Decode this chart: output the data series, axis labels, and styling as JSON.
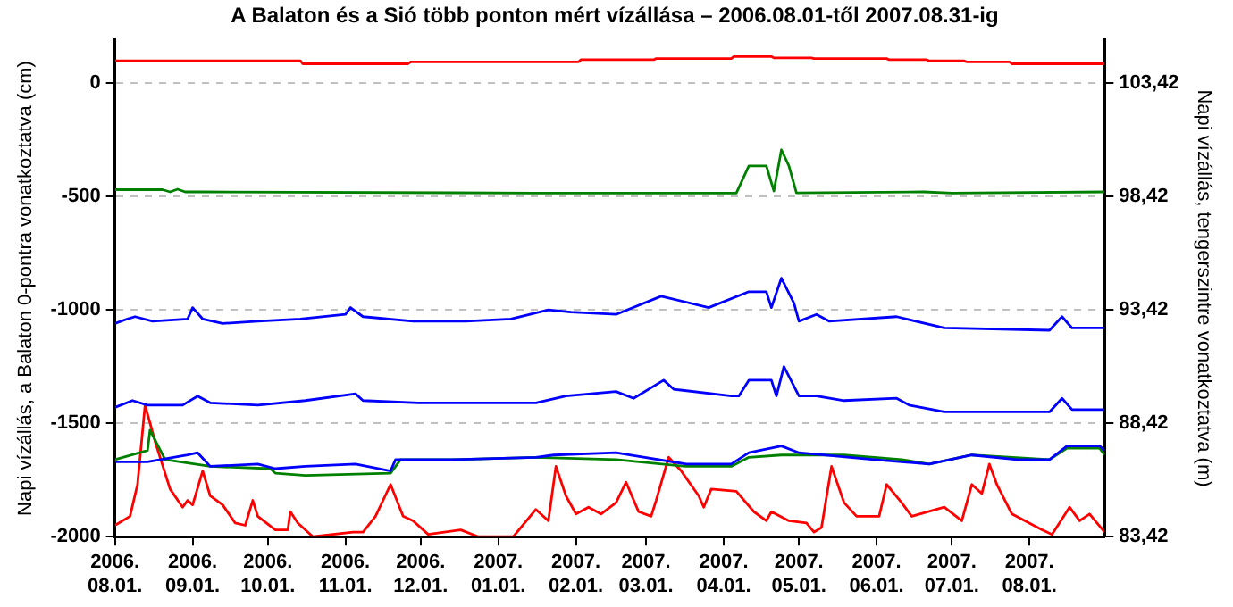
{
  "chart_data": {
    "type": "line",
    "title": "A Balaton és a Sió több ponton mért vízállása – 2006.08.01-től 2007.08.31-ig",
    "ylabel": "Napi vízállás, a Balaton 0-pontra vonatkoztatva (cm)",
    "y2label": "Napi vízállás, tengerszintre vonatkoztatva (m)",
    "xlim": [
      "2006-08-01",
      "2007-08-31"
    ],
    "xticks": [
      {
        "value": "2006-08-01",
        "label": "2006. 08.01."
      },
      {
        "value": "2006-09-01",
        "label": "2006. 09.01."
      },
      {
        "value": "2006-10-01",
        "label": "2006. 10.01."
      },
      {
        "value": "2006-11-01",
        "label": "2006. 11.01."
      },
      {
        "value": "2006-12-01",
        "label": "2006. 12.01."
      },
      {
        "value": "2007-01-01",
        "label": "2007. 01.01."
      },
      {
        "value": "2007-02-01",
        "label": "2007. 02.01."
      },
      {
        "value": "2007-03-01",
        "label": "2007. 03.01."
      },
      {
        "value": "2007-04-01",
        "label": "2007. 04.01."
      },
      {
        "value": "2007-05-01",
        "label": "2007. 05.01."
      },
      {
        "value": "2007-06-01",
        "label": "2007. 06.01."
      },
      {
        "value": "2007-07-01",
        "label": "2007. 07.01."
      },
      {
        "value": "2007-08-01",
        "label": "2007. 08.01."
      }
    ],
    "ylim": [
      -2000,
      190
    ],
    "yticks": [
      0,
      -500,
      -1000,
      -1500,
      -2000
    ],
    "y2lim": [
      83.42,
      105.32
    ],
    "y2ticks": [
      {
        "value": 103.42,
        "label": "103,42"
      },
      {
        "value": 98.42,
        "label": "98,42"
      },
      {
        "value": 93.42,
        "label": "93,42"
      },
      {
        "value": 88.42,
        "label": "88,42"
      },
      {
        "value": 83.42,
        "label": "83,42"
      }
    ],
    "grid": "y",
    "series": [
      {
        "color": "#ff0000",
        "x": [
          "2006-08-01",
          "2006-10-14",
          "2006-10-15",
          "2006-11-26",
          "2006-11-27",
          "2007-02-02",
          "2007-02-03",
          "2007-03-04",
          "2007-03-05",
          "2007-04-04",
          "2007-04-05",
          "2007-04-20",
          "2007-04-21",
          "2007-05-06",
          "2007-05-07",
          "2007-06-05",
          "2007-06-06",
          "2007-06-21",
          "2007-06-22",
          "2007-07-06",
          "2007-07-07",
          "2007-07-24",
          "2007-07-25",
          "2007-08-31"
        ],
        "values": [
          98,
          98,
          85,
          85,
          93,
          93,
          103,
          103,
          108,
          108,
          117,
          117,
          111,
          111,
          108,
          108,
          103,
          103,
          98,
          98,
          93,
          93,
          85,
          85
        ]
      },
      {
        "color": "#008000",
        "x": [
          "2006-08-01",
          "2006-08-20",
          "2006-08-23",
          "2006-08-26",
          "2006-08-29",
          "2006-09-05",
          "2007-01-15",
          "2007-04-06",
          "2007-04-11",
          "2007-04-18",
          "2007-04-21",
          "2007-04-24",
          "2007-04-27",
          "2007-04-30",
          "2007-06-20",
          "2007-07-01",
          "2007-08-31"
        ],
        "values": [
          -470,
          -470,
          -480,
          -468,
          -480,
          -480,
          -485,
          -485,
          -365,
          -365,
          -476,
          -294,
          -365,
          -484,
          -480,
          -485,
          -480
        ]
      },
      {
        "color": "#0000ff",
        "x": [
          "2006-08-01",
          "2006-08-06",
          "2006-08-09",
          "2006-08-16",
          "2006-08-30",
          "2006-09-01",
          "2006-09-05",
          "2006-09-13",
          "2006-09-27",
          "2006-10-14",
          "2006-11-01",
          "2006-11-03",
          "2006-11-08",
          "2006-11-28",
          "2006-12-19",
          "2007-01-06",
          "2007-01-21",
          "2007-01-30",
          "2007-02-17",
          "2007-03-07",
          "2007-03-26",
          "2007-04-11",
          "2007-04-18",
          "2007-04-20",
          "2007-04-24",
          "2007-04-29",
          "2007-05-01",
          "2007-05-08",
          "2007-05-13",
          "2007-06-09",
          "2007-06-28",
          "2007-08-09",
          "2007-08-14",
          "2007-08-18",
          "2007-08-31"
        ],
        "values": [
          -1060,
          -1040,
          -1030,
          -1050,
          -1040,
          -990,
          -1040,
          -1060,
          -1050,
          -1040,
          -1020,
          -990,
          -1030,
          -1050,
          -1050,
          -1040,
          -1000,
          -1010,
          -1020,
          -940,
          -990,
          -920,
          -920,
          -990,
          -860,
          -970,
          -1050,
          -1020,
          -1050,
          -1030,
          -1080,
          -1090,
          -1030,
          -1080,
          -1080
        ]
      },
      {
        "color": "#0000ff",
        "x": [
          "2006-08-01",
          "2006-08-08",
          "2006-08-14",
          "2006-08-28",
          "2006-09-03",
          "2006-09-08",
          "2006-09-27",
          "2006-10-16",
          "2006-11-05",
          "2006-11-08",
          "2006-11-30",
          "2006-12-24",
          "2007-01-16",
          "2007-01-28",
          "2007-02-17",
          "2007-02-24",
          "2007-03-08",
          "2007-03-12",
          "2007-04-04",
          "2007-04-07",
          "2007-04-11",
          "2007-04-20",
          "2007-04-22",
          "2007-04-25",
          "2007-05-01",
          "2007-05-08",
          "2007-05-19",
          "2007-06-09",
          "2007-06-14",
          "2007-06-28",
          "2007-08-09",
          "2007-08-14",
          "2007-08-18",
          "2007-08-31"
        ],
        "values": [
          -1430,
          -1400,
          -1420,
          -1420,
          -1380,
          -1410,
          -1420,
          -1400,
          -1370,
          -1400,
          -1410,
          -1410,
          -1410,
          -1380,
          -1360,
          -1390,
          -1310,
          -1350,
          -1380,
          -1380,
          -1310,
          -1310,
          -1380,
          -1250,
          -1380,
          -1380,
          -1400,
          -1390,
          -1420,
          -1450,
          -1450,
          -1390,
          -1440,
          -1440
        ]
      },
      {
        "color": "#0000ff",
        "x": [
          "2006-08-01",
          "2006-08-14",
          "2006-08-30",
          "2006-09-03",
          "2006-09-08",
          "2006-09-27",
          "2006-10-04",
          "2006-10-16",
          "2006-11-05",
          "2006-11-19",
          "2006-11-21",
          "2006-12-14",
          "2007-01-16",
          "2007-01-23",
          "2007-02-17",
          "2007-03-17",
          "2007-04-04",
          "2007-04-11",
          "2007-04-24",
          "2007-05-01",
          "2007-05-31",
          "2007-06-22",
          "2007-07-09",
          "2007-07-27",
          "2007-08-09",
          "2007-08-16",
          "2007-08-29",
          "2007-08-31"
        ],
        "values": [
          -1670,
          -1670,
          -1640,
          -1630,
          -1690,
          -1680,
          -1700,
          -1690,
          -1680,
          -1710,
          -1660,
          -1660,
          -1650,
          -1640,
          -1630,
          -1680,
          -1680,
          -1630,
          -1600,
          -1630,
          -1660,
          -1680,
          -1640,
          -1660,
          -1660,
          -1600,
          -1600,
          -1620
        ]
      },
      {
        "color": "#008000",
        "x": [
          "2006-08-01",
          "2006-08-14",
          "2006-08-15",
          "2006-08-21",
          "2006-09-08",
          "2006-10-02",
          "2006-10-04",
          "2006-10-16",
          "2006-11-19",
          "2006-11-23",
          "2006-12-14",
          "2007-01-16",
          "2007-02-17",
          "2007-03-17",
          "2007-04-04",
          "2007-04-11",
          "2007-04-24",
          "2007-05-19",
          "2007-06-11",
          "2007-06-22",
          "2007-07-09",
          "2007-08-09",
          "2007-08-16",
          "2007-08-29",
          "2007-08-31"
        ],
        "values": [
          -1660,
          -1620,
          -1530,
          -1660,
          -1690,
          -1700,
          -1720,
          -1730,
          -1720,
          -1660,
          -1660,
          -1650,
          -1660,
          -1690,
          -1690,
          -1650,
          -1640,
          -1640,
          -1660,
          -1680,
          -1640,
          -1660,
          -1610,
          -1610,
          -1640
        ]
      },
      {
        "color": "#ff0000",
        "x": [
          "2006-08-01",
          "2006-08-07",
          "2006-08-10",
          "2006-08-13",
          "2006-08-17",
          "2006-08-23",
          "2006-08-28",
          "2006-08-30",
          "2006-09-01",
          "2006-09-05",
          "2006-09-08",
          "2006-09-13",
          "2006-09-18",
          "2006-09-22",
          "2006-09-25",
          "2006-09-27",
          "2006-10-04",
          "2006-10-09",
          "2006-10-10",
          "2006-10-13",
          "2006-10-19",
          "2006-11-04",
          "2006-11-08",
          "2006-11-13",
          "2006-11-19",
          "2006-11-24",
          "2006-11-28",
          "2006-12-04",
          "2006-12-17",
          "2006-12-24",
          "2007-01-07",
          "2007-01-16",
          "2007-01-21",
          "2007-01-24",
          "2007-01-28",
          "2007-02-01",
          "2007-02-06",
          "2007-02-11",
          "2007-02-17",
          "2007-02-21",
          "2007-02-26",
          "2007-03-03",
          "2007-03-05",
          "2007-03-10",
          "2007-03-15",
          "2007-03-22",
          "2007-03-24",
          "2007-03-27",
          "2007-04-06",
          "2007-04-13",
          "2007-04-18",
          "2007-04-20",
          "2007-04-27",
          "2007-05-04",
          "2007-05-07",
          "2007-05-10",
          "2007-05-14",
          "2007-05-19",
          "2007-05-24",
          "2007-06-02",
          "2007-06-05",
          "2007-06-11",
          "2007-06-15",
          "2007-06-28",
          "2007-07-05",
          "2007-07-09",
          "2007-07-13",
          "2007-07-16",
          "2007-07-19",
          "2007-07-25",
          "2007-08-06",
          "2007-08-10",
          "2007-08-17",
          "2007-08-21",
          "2007-08-25",
          "2007-08-31"
        ],
        "values": [
          -1950,
          -1910,
          -1770,
          -1420,
          -1580,
          -1790,
          -1870,
          -1840,
          -1860,
          -1710,
          -1820,
          -1860,
          -1940,
          -1950,
          -1840,
          -1910,
          -1970,
          -1970,
          -1890,
          -1940,
          -2000,
          -1980,
          -1980,
          -1910,
          -1770,
          -1910,
          -1930,
          -1990,
          -1970,
          -2000,
          -2000,
          -1880,
          -1930,
          -1690,
          -1820,
          -1900,
          -1870,
          -1900,
          -1850,
          -1760,
          -1890,
          -1910,
          -1840,
          -1650,
          -1710,
          -1820,
          -1870,
          -1790,
          -1800,
          -1890,
          -1930,
          -1890,
          -1930,
          -1940,
          -1980,
          -1960,
          -1690,
          -1850,
          -1910,
          -1910,
          -1770,
          -1850,
          -1910,
          -1870,
          -1930,
          -1770,
          -1810,
          -1680,
          -1770,
          -1900,
          -1970,
          -1990,
          -1870,
          -1930,
          -1900,
          -1980
        ]
      }
    ]
  }
}
